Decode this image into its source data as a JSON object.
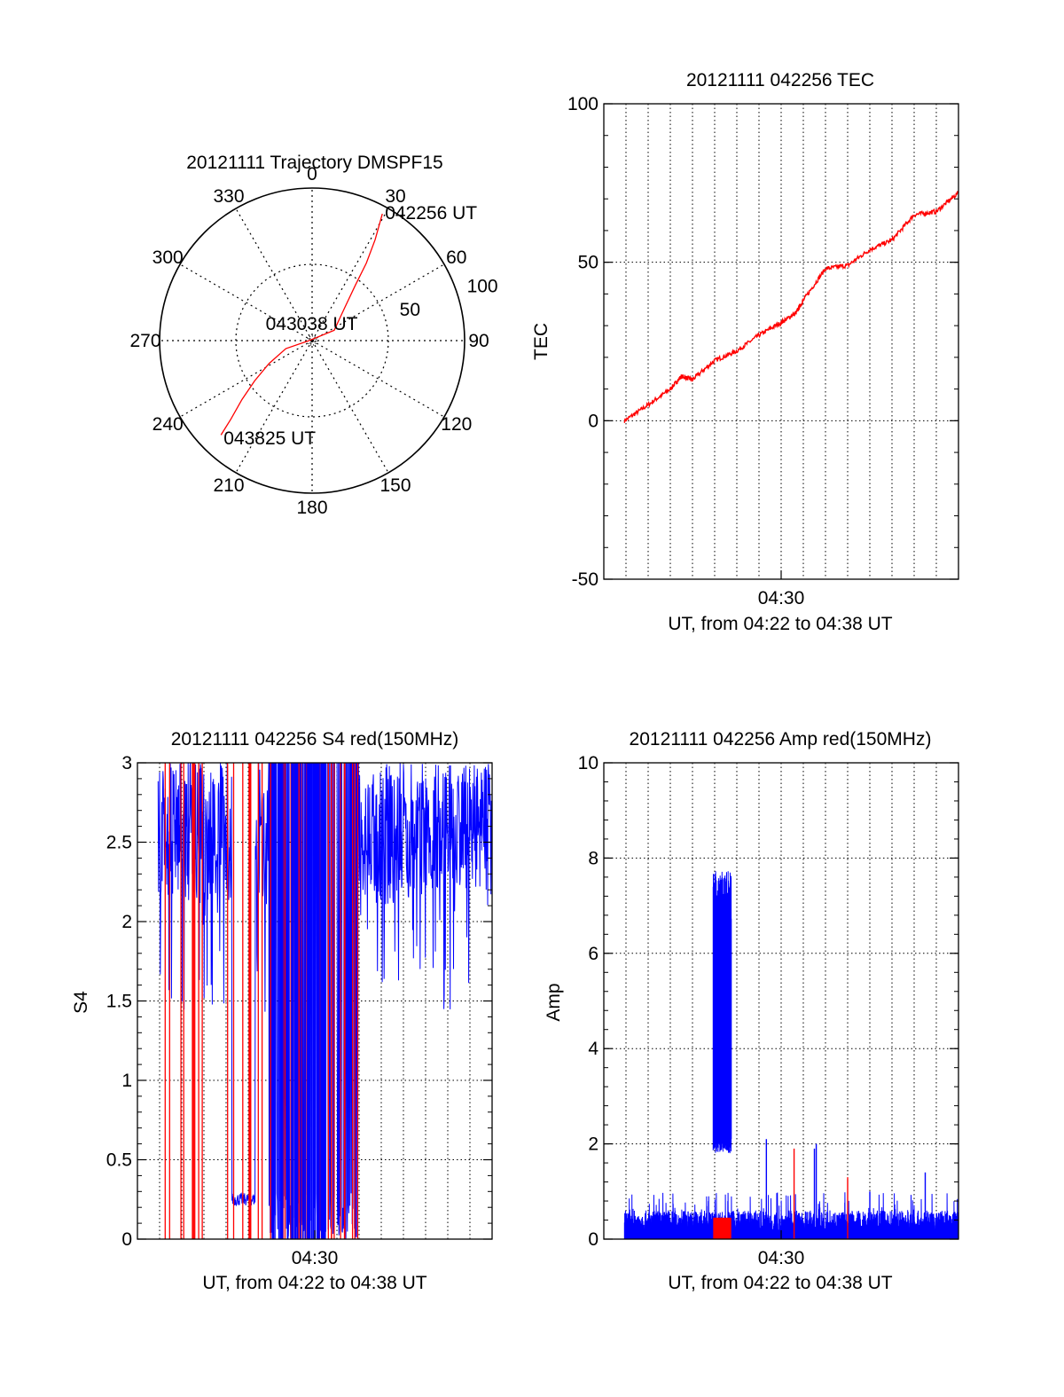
{
  "colors": {
    "red": "#ff0000",
    "blue": "#0000ff",
    "axis": "#000000",
    "grid": "#000000"
  },
  "chart_data": [
    {
      "id": "trajectory",
      "type": "polar",
      "title": "20121111 Trajectory DMSPF15",
      "azimuth_labels": [
        "0",
        "30",
        "60",
        "90",
        "120",
        "150",
        "180",
        "210",
        "240",
        "270",
        "300",
        "330"
      ],
      "radial_labels": [
        "50",
        "100"
      ],
      "rmax": 100,
      "grid": true,
      "series": [
        {
          "color": "red",
          "points": [
            {
              "az": 29,
              "r": 95
            },
            {
              "az": 32,
              "r": 78
            },
            {
              "az": 35,
              "r": 62
            },
            {
              "az": 38,
              "r": 46
            },
            {
              "az": 45,
              "r": 30
            },
            {
              "az": 65,
              "r": 16
            },
            {
              "az": 270,
              "r": 2
            },
            {
              "az": 253,
              "r": 18
            },
            {
              "az": 242,
              "r": 32
            },
            {
              "az": 235,
              "r": 46
            },
            {
              "az": 230,
              "r": 60
            },
            {
              "az": 226,
              "r": 74
            },
            {
              "az": 224,
              "r": 86
            }
          ]
        }
      ],
      "annotations": [
        {
          "text": "042256 UT",
          "az": 29,
          "r": 95
        },
        {
          "text": "043038 UT",
          "az": 270,
          "r": 2
        },
        {
          "text": "043825 UT",
          "az": 224,
          "r": 86
        }
      ]
    },
    {
      "id": "tec",
      "type": "line",
      "title": "20121111 042256 TEC",
      "xlabel": "UT, from 04:22 to 04:38 UT",
      "ylabel": "TEC",
      "xlim": [
        "04:22",
        "04:38"
      ],
      "ylim": [
        -50,
        100
      ],
      "yticks": [
        "-50",
        "0",
        "50",
        "100"
      ],
      "xticks": [
        {
          "label": "04:30",
          "t": "04:30"
        }
      ],
      "grid": true,
      "series": [
        {
          "color": "red",
          "x": [
            "04:22:56",
            "04:24:00",
            "04:25:00",
            "04:25:30",
            "04:26:00",
            "04:27:00",
            "04:28:00",
            "04:29:00",
            "04:30:00",
            "04:30:40",
            "04:31:00",
            "04:32:00",
            "04:33:00",
            "04:34:00",
            "04:35:00",
            "04:36:00",
            "04:37:00",
            "04:38:00"
          ],
          "values": [
            0,
            5,
            10,
            14,
            13,
            19,
            22,
            27,
            31,
            34,
            38,
            48,
            49,
            54,
            57,
            65,
            66,
            72
          ]
        }
      ]
    },
    {
      "id": "s4",
      "type": "line",
      "title": "20121111 042256 S4 red(150MHz)",
      "xlabel": "UT, from 04:22 to 04:38 UT",
      "ylabel": "S4",
      "xlim": [
        "04:22",
        "04:38"
      ],
      "ylim": [
        0,
        3
      ],
      "yticks": [
        "0",
        "0.5",
        "1",
        "1.5",
        "2",
        "2.5",
        "3"
      ],
      "xticks": [
        {
          "label": "04:30",
          "t": "04:30"
        }
      ],
      "grid": true,
      "series": [
        {
          "color": "blue",
          "description": "S4 scintillation index, saturated near 3 with deep dropouts",
          "x_range": [
            "04:22:56",
            "04:38:00"
          ]
        },
        {
          "color": "red",
          "description": "dropout spikes to 0",
          "x_range": [
            "04:22:56",
            "04:32:00"
          ]
        }
      ]
    },
    {
      "id": "amp",
      "type": "line",
      "title": "20121111 042256 Amp red(150MHz)",
      "xlabel": "UT, from 04:22 to 04:38 UT",
      "ylabel": "Amp",
      "xlim": [
        "04:22",
        "04:38"
      ],
      "ylim": [
        0,
        10
      ],
      "yticks": [
        "0",
        "2",
        "4",
        "6",
        "8",
        "10"
      ],
      "xticks": [
        {
          "label": "04:30",
          "t": "04:30"
        }
      ],
      "grid": true,
      "series": [
        {
          "color": "blue",
          "baseline_range": [
            0.1,
            0.6
          ],
          "burst": {
            "from": "04:26:56",
            "to": "04:27:45",
            "low": 1.8,
            "high": 7.8
          },
          "spikes": [
            {
              "t": "04:29:20",
              "v": 2.1
            },
            {
              "t": "04:31:30",
              "v": 1.9
            },
            {
              "t": "04:31:35",
              "v": 2.0
            },
            {
              "t": "04:34:00",
              "v": 1.0
            },
            {
              "t": "04:36:30",
              "v": 1.4
            }
          ]
        },
        {
          "color": "red",
          "segment": {
            "from": "04:26:56",
            "to": "04:27:45",
            "low": 0.0,
            "high": 0.45
          },
          "spikes": [
            {
              "t": "04:30:35",
              "v": 1.9
            },
            {
              "t": "04:33:00",
              "v": 1.3
            }
          ]
        }
      ]
    }
  ]
}
